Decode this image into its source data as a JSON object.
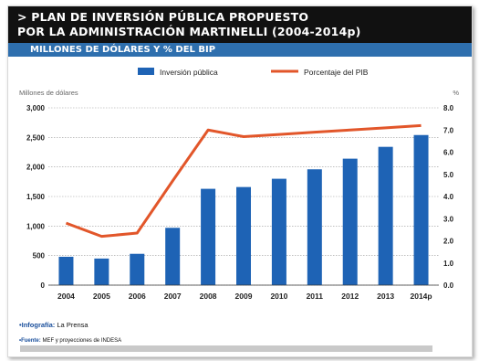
{
  "header": {
    "line1": "> PLAN DE INVERSIÓN PÚBLICA PROPUESTO",
    "line2": "POR LA ADMINISTRACIÓN MARTINELLI (2004-2014p)",
    "subtitle": "MILLONES DE DÓLARES Y % DEL BIP"
  },
  "colors": {
    "bar": "#1e63b5",
    "line": "#e2562a",
    "header_bg": "#111111",
    "subheader_bg": "#2e6fae"
  },
  "chart_data": {
    "type": "bar",
    "categories": [
      "2004",
      "2005",
      "2006",
      "2007",
      "2008",
      "2009",
      "2010",
      "2011",
      "2012",
      "2013",
      "2014p"
    ],
    "series": [
      {
        "name": "Inversión pública",
        "type": "bar",
        "axis": "left",
        "values": [
          480,
          450,
          530,
          970,
          1630,
          1660,
          1800,
          1960,
          2140,
          2340,
          2540
        ]
      },
      {
        "name": "Porcentaje del PIB",
        "type": "line",
        "axis": "right",
        "values": [
          2.8,
          2.2,
          2.35,
          4.7,
          7.0,
          6.7,
          6.8,
          6.9,
          7.0,
          7.1,
          7.2
        ]
      }
    ],
    "ylabel": "Millones de dólares",
    "y2label": "%",
    "ylim": [
      0,
      3000
    ],
    "y2lim": [
      0,
      8
    ],
    "yticks": [
      "0",
      "500",
      "1,000",
      "1,500",
      "2,000",
      "2,500",
      "3,000"
    ],
    "y2ticks": [
      "0.0",
      "1.0",
      "2.0",
      "3.0",
      "4.0",
      "5.0",
      "6.0",
      "7.0",
      "8.0"
    ],
    "grid": true,
    "legend": "top"
  },
  "footer": {
    "infografia_label": "•Infografía:",
    "infografia_value": "La Prensa",
    "fuente_label": "•Fuente:",
    "fuente_value": "MEF y proyecciones de INDESA"
  }
}
